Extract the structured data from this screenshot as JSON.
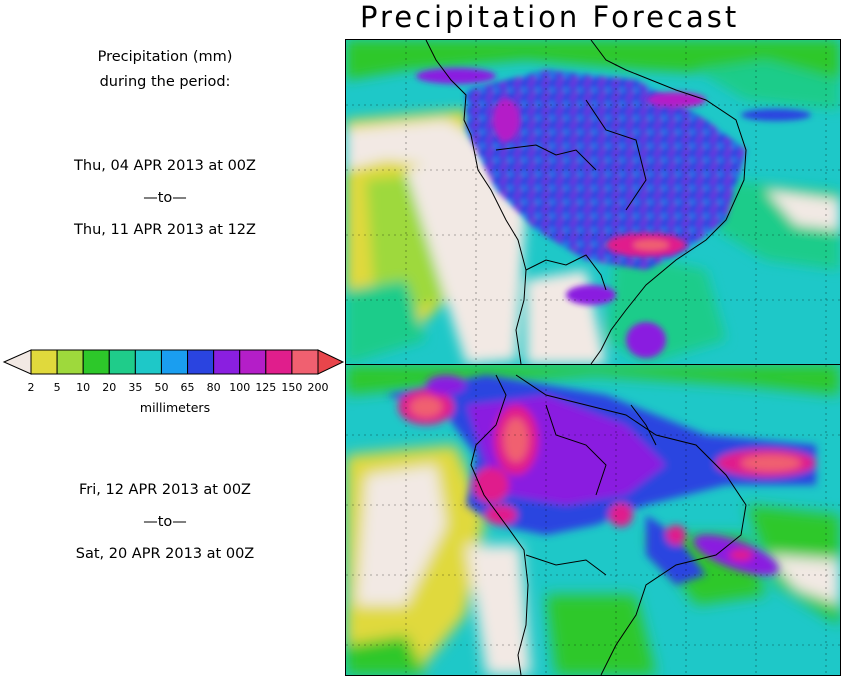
{
  "title": "Precipitation Forecast",
  "description": {
    "line1": "Precipitation (mm)",
    "line2": "during the period:"
  },
  "periods": [
    {
      "start": "Thu, 04 APR 2013 at 00Z",
      "separator": "—to—",
      "end": "Thu, 11 APR 2013 at 12Z"
    },
    {
      "start": "Fri, 12 APR 2013 at 00Z",
      "separator": "—to—",
      "end": "Sat, 20 APR 2013 at 00Z"
    }
  ],
  "legend": {
    "units": "millimeters",
    "ticks": [
      "2",
      "5",
      "10",
      "20",
      "35",
      "50",
      "65",
      "80",
      "100",
      "125",
      "150",
      "200"
    ],
    "low_color": "#f2e9e4",
    "high_color": "#e8454b",
    "colors": [
      "#e0d93c",
      "#9ed93c",
      "#2dc82a",
      "#1fcc8a",
      "#1ec8c8",
      "#1a9ef0",
      "#2a44e0",
      "#8a1fe0",
      "#b41ec8",
      "#e01e8c",
      "#f06070"
    ]
  },
  "map_colors": {
    "dry": "#f2e9e4",
    "coast": "#000000"
  }
}
